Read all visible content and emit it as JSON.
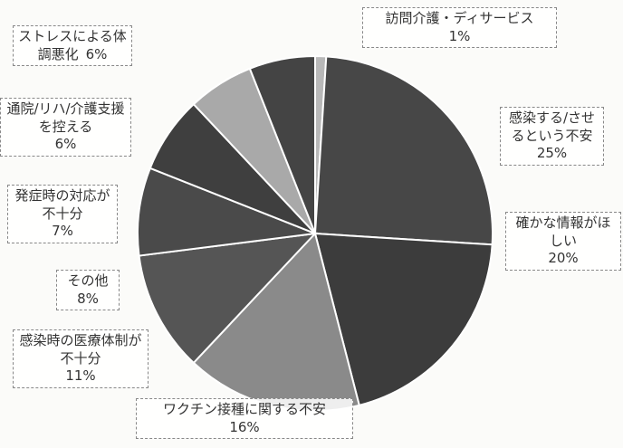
{
  "chart_data": {
    "type": "pie",
    "categories": [
      "訪問介護・ディサービス",
      "感染する/させるという不安",
      "確かな情報がほしい",
      "ワクチン接種に関する不安",
      "感染時の医療体制が不十分",
      "その他",
      "発症時の対応が不十分",
      "通院/リハ/介護支援を控える",
      "ストレスによる体調悪化"
    ],
    "values": [
      1,
      25,
      20,
      16,
      11,
      8,
      7,
      6,
      6
    ],
    "value_labels": [
      "1%",
      "25%",
      "20%",
      "16%",
      "11%",
      "8%",
      "7%",
      "6%",
      "6%"
    ],
    "colors": [
      "#b8b8b8",
      "#474747",
      "#3c3c3c",
      "#8a8a8a",
      "#555555",
      "#4a4a4a",
      "#3f3f3f",
      "#a9a9a9",
      "#444444"
    ]
  }
}
